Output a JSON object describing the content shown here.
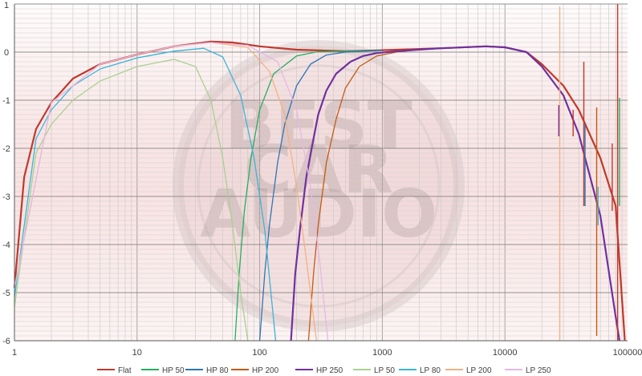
{
  "chart_data": {
    "type": "line",
    "title": "",
    "xlabel": "",
    "ylabel": "",
    "x_scale": "log",
    "xlim": [
      1,
      100000
    ],
    "ylim": [
      -6,
      1
    ],
    "x_ticks": [
      "1",
      "10",
      "100",
      "1000",
      "10000",
      "100000"
    ],
    "y_ticks": [
      "1",
      "0",
      "-1",
      "-2",
      "-3",
      "-4",
      "-5",
      "-6"
    ],
    "grid": true,
    "legend_position": "bottom",
    "watermark": "BEST CAR AUDIO",
    "series": [
      {
        "name": "Flat",
        "color": "#c0392b",
        "x": [
          1,
          1.2,
          1.5,
          2,
          3,
          5,
          10,
          20,
          40,
          60,
          100,
          200,
          500,
          1000,
          3000,
          7000,
          10000,
          15000,
          20000,
          30000,
          40000,
          60000,
          80000,
          95000
        ],
        "y": [
          -4.9,
          -2.6,
          -1.6,
          -1.05,
          -0.55,
          -0.25,
          -0.05,
          0.12,
          0.22,
          0.2,
          0.12,
          0.05,
          0.02,
          0.04,
          0.08,
          0.12,
          0.1,
          0,
          -0.25,
          -0.7,
          -1.2,
          -2.2,
          -3.2,
          -6
        ]
      },
      {
        "name": "HP 50",
        "color": "#27ae60",
        "x": [
          63,
          68,
          75,
          85,
          100,
          130,
          200,
          300,
          500,
          1000
        ],
        "y": [
          -6,
          -4.6,
          -3.3,
          -2.2,
          -1.2,
          -0.45,
          -0.08,
          0.01,
          0.02,
          0.04
        ]
      },
      {
        "name": "HP 80",
        "color": "#2e75b6",
        "x": [
          100,
          110,
          120,
          140,
          160,
          200,
          260,
          350,
          500,
          1000
        ],
        "y": [
          -6,
          -4.6,
          -3.6,
          -2.3,
          -1.5,
          -0.7,
          -0.25,
          -0.06,
          0,
          0.04
        ]
      },
      {
        "name": "HP 200",
        "color": "#c55a11",
        "x": [
          250,
          275,
          300,
          350,
          420,
          500,
          650,
          900,
          1300,
          2000
        ],
        "y": [
          -6,
          -4.6,
          -3.6,
          -2.3,
          -1.4,
          -0.75,
          -0.3,
          -0.08,
          0,
          0.05
        ]
      },
      {
        "name": "HP 250",
        "color": "#7030a0",
        "x": [
          180,
          195,
          215,
          240,
          270,
          300,
          350,
          420,
          550,
          700,
          900,
          1500,
          3000,
          7000,
          10000,
          15000,
          20000,
          30000,
          40000,
          60000,
          80000,
          86000
        ],
        "y": [
          -6,
          -4.6,
          -3.6,
          -2.6,
          -1.9,
          -1.3,
          -0.8,
          -0.45,
          -0.2,
          -0.08,
          -0.02,
          0.03,
          0.08,
          0.12,
          0.1,
          0,
          -0.3,
          -0.9,
          -1.7,
          -3.4,
          -5.5,
          -6
        ]
      },
      {
        "name": "LP 50",
        "color": "#a9d18e",
        "x": [
          1,
          1.5,
          2,
          3,
          5,
          10,
          20,
          30,
          40,
          50,
          60,
          70,
          80
        ],
        "y": [
          -5.3,
          -2.1,
          -1.5,
          -1.0,
          -0.6,
          -0.3,
          -0.15,
          -0.3,
          -1.0,
          -2.2,
          -3.6,
          -5.0,
          -6
        ]
      },
      {
        "name": "LP 80",
        "color": "#3cb4d8",
        "x": [
          1,
          1.5,
          2,
          3,
          5,
          10,
          20,
          35,
          50,
          70,
          90,
          110,
          135
        ],
        "y": [
          -5.1,
          -1.8,
          -1.2,
          -0.7,
          -0.35,
          -0.12,
          0.02,
          0.08,
          -0.1,
          -0.9,
          -2.2,
          -3.7,
          -6
        ]
      },
      {
        "name": "LP 200",
        "color": "#f4b183",
        "x": [
          1,
          2,
          5,
          10,
          20,
          40,
          80,
          120,
          160,
          200,
          240,
          290
        ],
        "y": [
          -4.9,
          -1.05,
          -0.25,
          -0.05,
          0.12,
          0.2,
          0.1,
          -0.4,
          -1.3,
          -2.8,
          -4.3,
          -6
        ]
      },
      {
        "name": "LP 250",
        "color": "#e6b8e6",
        "x": [
          1,
          2,
          5,
          10,
          20,
          40,
          80,
          140,
          200,
          260,
          310,
          360
        ],
        "y": [
          -4.9,
          -1.05,
          -0.25,
          -0.05,
          0.12,
          0.2,
          0.14,
          -0.2,
          -1.2,
          -2.8,
          -4.4,
          -6
        ]
      }
    ]
  }
}
